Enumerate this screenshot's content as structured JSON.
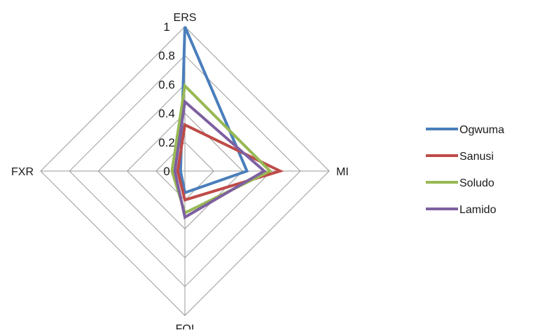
{
  "chart_data": {
    "type": "radar",
    "axes": [
      "ERS",
      "MI",
      "FOI",
      "FXR"
    ],
    "rlim": [
      0,
      1
    ],
    "ticks": [
      "0",
      "0.2",
      "0.4",
      "0.6",
      "0.8",
      "1"
    ],
    "tick_values": [
      0,
      0.2,
      0.4,
      0.6,
      0.8,
      1
    ],
    "grid": true,
    "legend_position": "right",
    "series": [
      {
        "name": "Ogwuma",
        "color": "#4a7ebb",
        "values": [
          1.0,
          0.43,
          0.15,
          0.03
        ]
      },
      {
        "name": "Sanusi",
        "color": "#be4b48",
        "values": [
          0.32,
          0.66,
          0.2,
          0.05
        ]
      },
      {
        "name": "Soludo",
        "color": "#98b954",
        "values": [
          0.59,
          0.59,
          0.29,
          0.09
        ]
      },
      {
        "name": "Lamido",
        "color": "#7d60a0",
        "values": [
          0.48,
          0.55,
          0.32,
          0.07
        ]
      }
    ]
  }
}
